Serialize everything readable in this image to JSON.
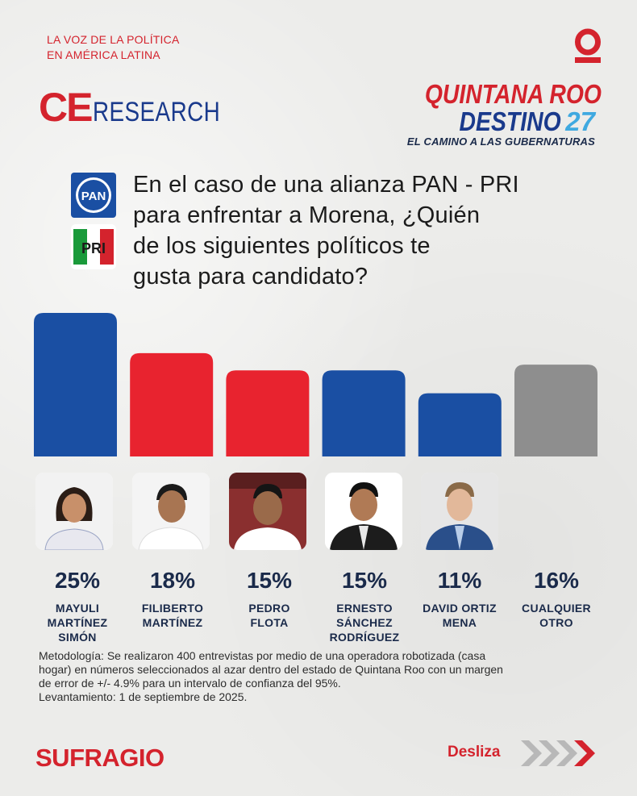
{
  "header": {
    "tagline": [
      "LA VOZ DE LA POLÍTICA",
      "EN AMÉRICA LATINA"
    ],
    "ce_logo": {
      "ce": "CE",
      "research": "RESEARCH"
    },
    "campaign": {
      "line1": "QUINTANA ROO",
      "line2_word": "DESTINO",
      "line2_number": "27",
      "line3": "EL CAMINO A LAS GUBERNATURAS"
    },
    "o_logo_icon": "o-logo-icon"
  },
  "parties": {
    "pan": "PAN",
    "pri": "PRI"
  },
  "question": [
    "En el caso de una alianza PAN - PRI",
    "para enfrentar a Morena, ¿Quién",
    "de los siguientes políticos te",
    "gusta para candidato?"
  ],
  "chart_data": {
    "type": "bar",
    "categories": [
      "MAYULI MARTÍNEZ SIMÓN",
      "FILIBERTO MARTÍNEZ",
      "PEDRO FLOTA",
      "ERNESTO SÁNCHEZ RODRÍGUEZ",
      "DAVID ORTIZ MENA",
      "CUALQUIER OTRO"
    ],
    "values": [
      25,
      18,
      15,
      15,
      11,
      16
    ],
    "value_labels": [
      "25%",
      "18%",
      "15%",
      "15%",
      "11%",
      "16%"
    ],
    "name_lines": [
      [
        "MAYULI",
        "MARTÍNEZ",
        "SIMÓN"
      ],
      [
        "FILIBERTO",
        "MARTÍNEZ"
      ],
      [
        "PEDRO",
        "FLOTA"
      ],
      [
        "ERNESTO",
        "SÁNCHEZ",
        "RODRÍGUEZ"
      ],
      [
        "DAVID ORTIZ",
        "MENA"
      ],
      [
        "CUALQUIER",
        "OTRO"
      ]
    ],
    "bar_colors": [
      "#1a4fa3",
      "#e8232f",
      "#e8232f",
      "#1a4fa3",
      "#1a4fa3",
      "#8e8e8e"
    ],
    "title": "",
    "xlabel": "",
    "ylabel": "",
    "grid": false
  },
  "methodology": [
    "Metodología: Se realizaron 400 entrevistas por medio de una operadora robotizada (casa",
    "hogar) en números seleccionados al azar dentro del estado de Quintana Roo con un margen",
    "de error de +/- 4.9% para un intervalo de confianza del 95%.",
    "Levantamiento: 1 de septiembre de 2025."
  ],
  "footer": {
    "brand": "SUFRAGIO",
    "swipe": "Desliza"
  },
  "colors": {
    "accent_red": "#d4232d",
    "navy": "#1a2a4a",
    "blue": "#1a4fa3",
    "gray": "#8e8e8e"
  }
}
